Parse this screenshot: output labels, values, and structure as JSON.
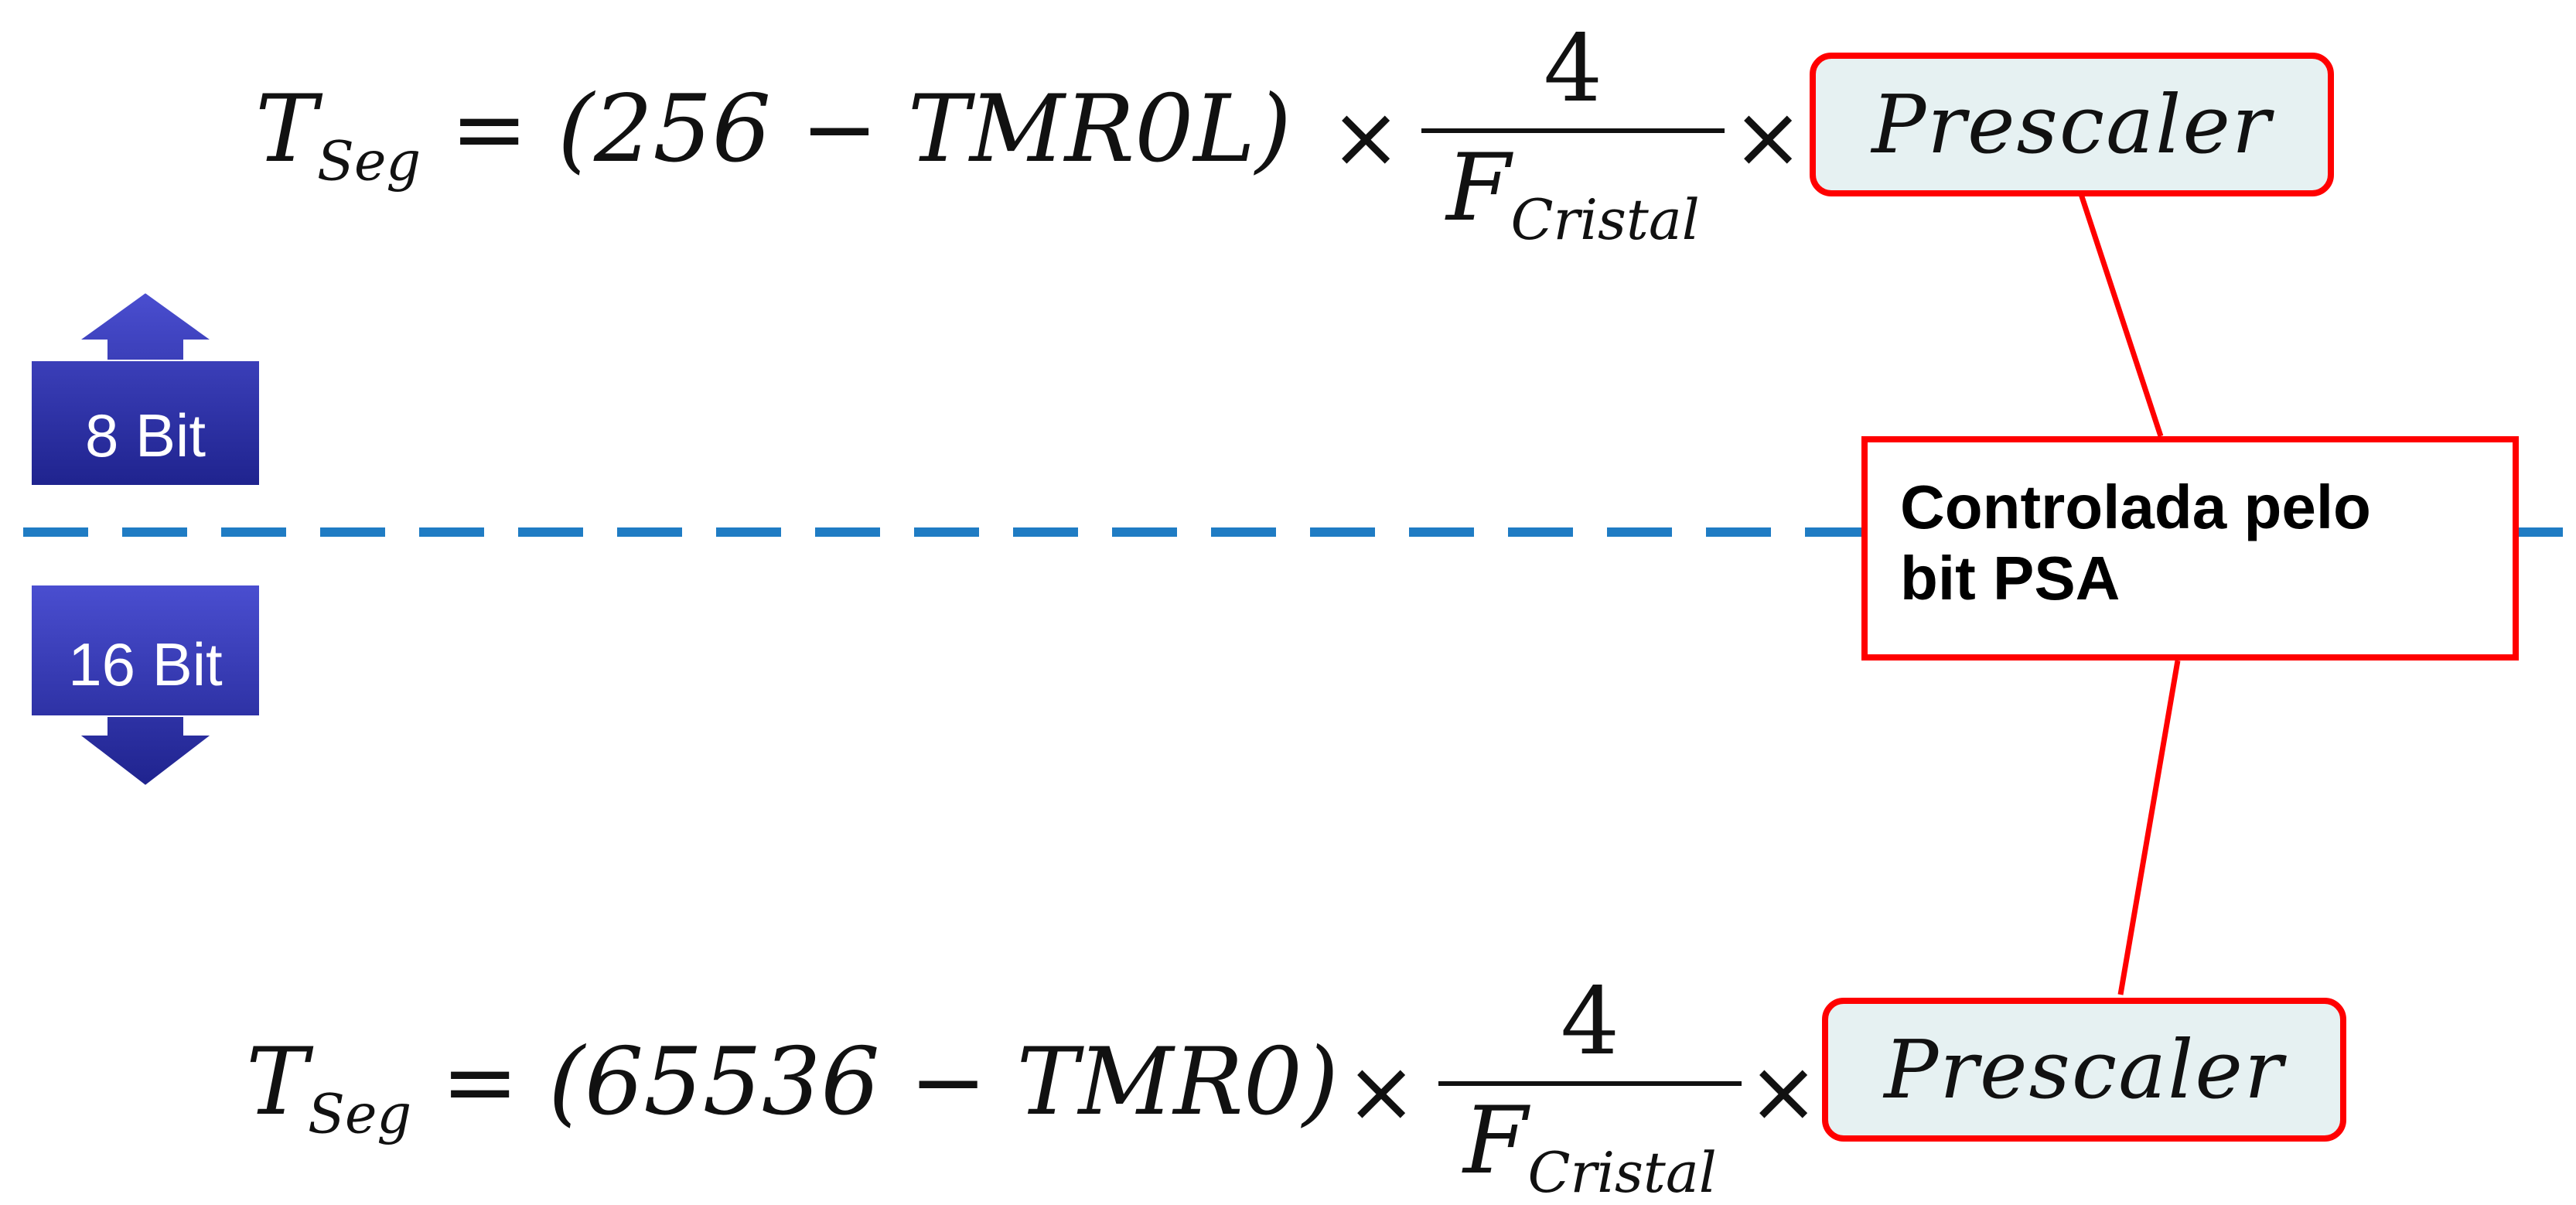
{
  "formula_top": {
    "lhs": "T",
    "lhs_sub": "Seg",
    "equals": "=",
    "paren_expr": "(256 − TMR0L)",
    "times": "×",
    "numerator": "4",
    "denominator": "F",
    "denominator_sub": "Cristal",
    "times2": "×",
    "prescaler": "Prescaler"
  },
  "formula_bottom": {
    "lhs": "T",
    "lhs_sub": "Seg",
    "equals": "=",
    "paren_expr": "(65536 − TMR0)",
    "times": "×",
    "numerator": "4",
    "denominator": "F",
    "denominator_sub": "Cristal",
    "times2": "×",
    "prescaler": "Prescaler"
  },
  "arrows": {
    "up_label": "8 Bit",
    "down_label": "16 Bit"
  },
  "callout": {
    "line1": "Controlada pelo",
    "line2": "bit PSA"
  },
  "colors": {
    "arrow_fill": "#2e32b4",
    "divider": "#1f7cc4",
    "callout_border": "#ff0000",
    "prescaler_fill": "#e6f1f2"
  }
}
